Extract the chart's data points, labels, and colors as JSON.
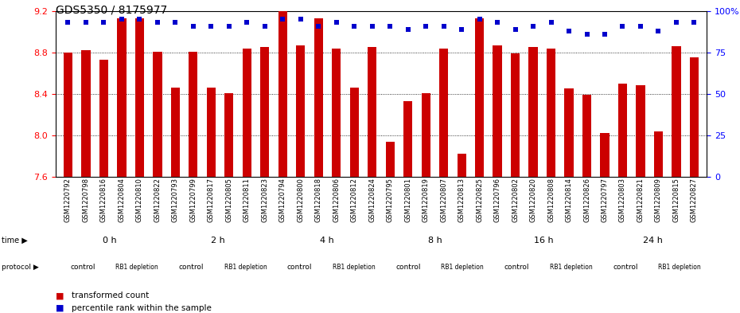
{
  "title": "GDS5350 / 8175977",
  "samples": [
    "GSM1220792",
    "GSM1220798",
    "GSM1220816",
    "GSM1220804",
    "GSM1220810",
    "GSM1220822",
    "GSM1220793",
    "GSM1220799",
    "GSM1220817",
    "GSM1220805",
    "GSM1220811",
    "GSM1220823",
    "GSM1220794",
    "GSM1220800",
    "GSM1220818",
    "GSM1220806",
    "GSM1220812",
    "GSM1220824",
    "GSM1220795",
    "GSM1220801",
    "GSM1220819",
    "GSM1220807",
    "GSM1220813",
    "GSM1220825",
    "GSM1220796",
    "GSM1220802",
    "GSM1220820",
    "GSM1220808",
    "GSM1220814",
    "GSM1220826",
    "GSM1220797",
    "GSM1220803",
    "GSM1220821",
    "GSM1220809",
    "GSM1220815",
    "GSM1220827"
  ],
  "bar_values": [
    8.8,
    8.82,
    8.73,
    9.13,
    9.13,
    8.81,
    8.46,
    8.81,
    8.46,
    8.41,
    8.84,
    8.85,
    9.2,
    8.87,
    9.13,
    8.84,
    8.46,
    8.85,
    7.94,
    8.33,
    8.41,
    8.84,
    7.82,
    9.13,
    8.87,
    8.79,
    8.85,
    8.84,
    8.45,
    8.39,
    8.02,
    8.5,
    8.48,
    8.04,
    8.86,
    8.75
  ],
  "percentile_values": [
    93,
    93,
    93,
    95,
    95,
    93,
    93,
    91,
    91,
    91,
    93,
    91,
    95,
    95,
    91,
    93,
    91,
    91,
    91,
    89,
    91,
    91,
    89,
    95,
    93,
    89,
    91,
    93,
    88,
    86,
    86,
    91,
    91,
    88,
    93,
    93
  ],
  "time_groups": [
    {
      "label": "0 h",
      "start": 0,
      "end": 6
    },
    {
      "label": "2 h",
      "start": 6,
      "end": 12
    },
    {
      "label": "4 h",
      "start": 12,
      "end": 18
    },
    {
      "label": "8 h",
      "start": 18,
      "end": 24
    },
    {
      "label": "16 h",
      "start": 24,
      "end": 30
    },
    {
      "label": "24 h",
      "start": 30,
      "end": 36
    }
  ],
  "protocol_groups": [
    {
      "label": "control",
      "start": 0,
      "end": 3
    },
    {
      "label": "RB1 depletion",
      "start": 3,
      "end": 6
    },
    {
      "label": "control",
      "start": 6,
      "end": 9
    },
    {
      "label": "RB1 depletion",
      "start": 9,
      "end": 12
    },
    {
      "label": "control",
      "start": 12,
      "end": 15
    },
    {
      "label": "RB1 depletion",
      "start": 15,
      "end": 18
    },
    {
      "label": "control",
      "start": 18,
      "end": 21
    },
    {
      "label": "RB1 depletion",
      "start": 21,
      "end": 24
    },
    {
      "label": "control",
      "start": 24,
      "end": 27
    },
    {
      "label": "RB1 depletion",
      "start": 27,
      "end": 30
    },
    {
      "label": "control",
      "start": 30,
      "end": 33
    },
    {
      "label": "RB1 depletion",
      "start": 33,
      "end": 36
    }
  ],
  "ylim_left": [
    7.6,
    9.2
  ],
  "ylim_right": [
    0,
    100
  ],
  "yticks_left": [
    7.6,
    8.0,
    8.4,
    8.8,
    9.2
  ],
  "yticks_right": [
    0,
    25,
    50,
    75,
    100
  ],
  "bar_color": "#cc0000",
  "dot_color": "#0000cc",
  "background_color": "#ffffff",
  "time_row_color": "#aae8aa",
  "control_color": "#f0c0f0",
  "rb1_color": "#dd44dd",
  "title_fontsize": 10,
  "legend_items": [
    "transformed count",
    "percentile rank within the sample"
  ]
}
